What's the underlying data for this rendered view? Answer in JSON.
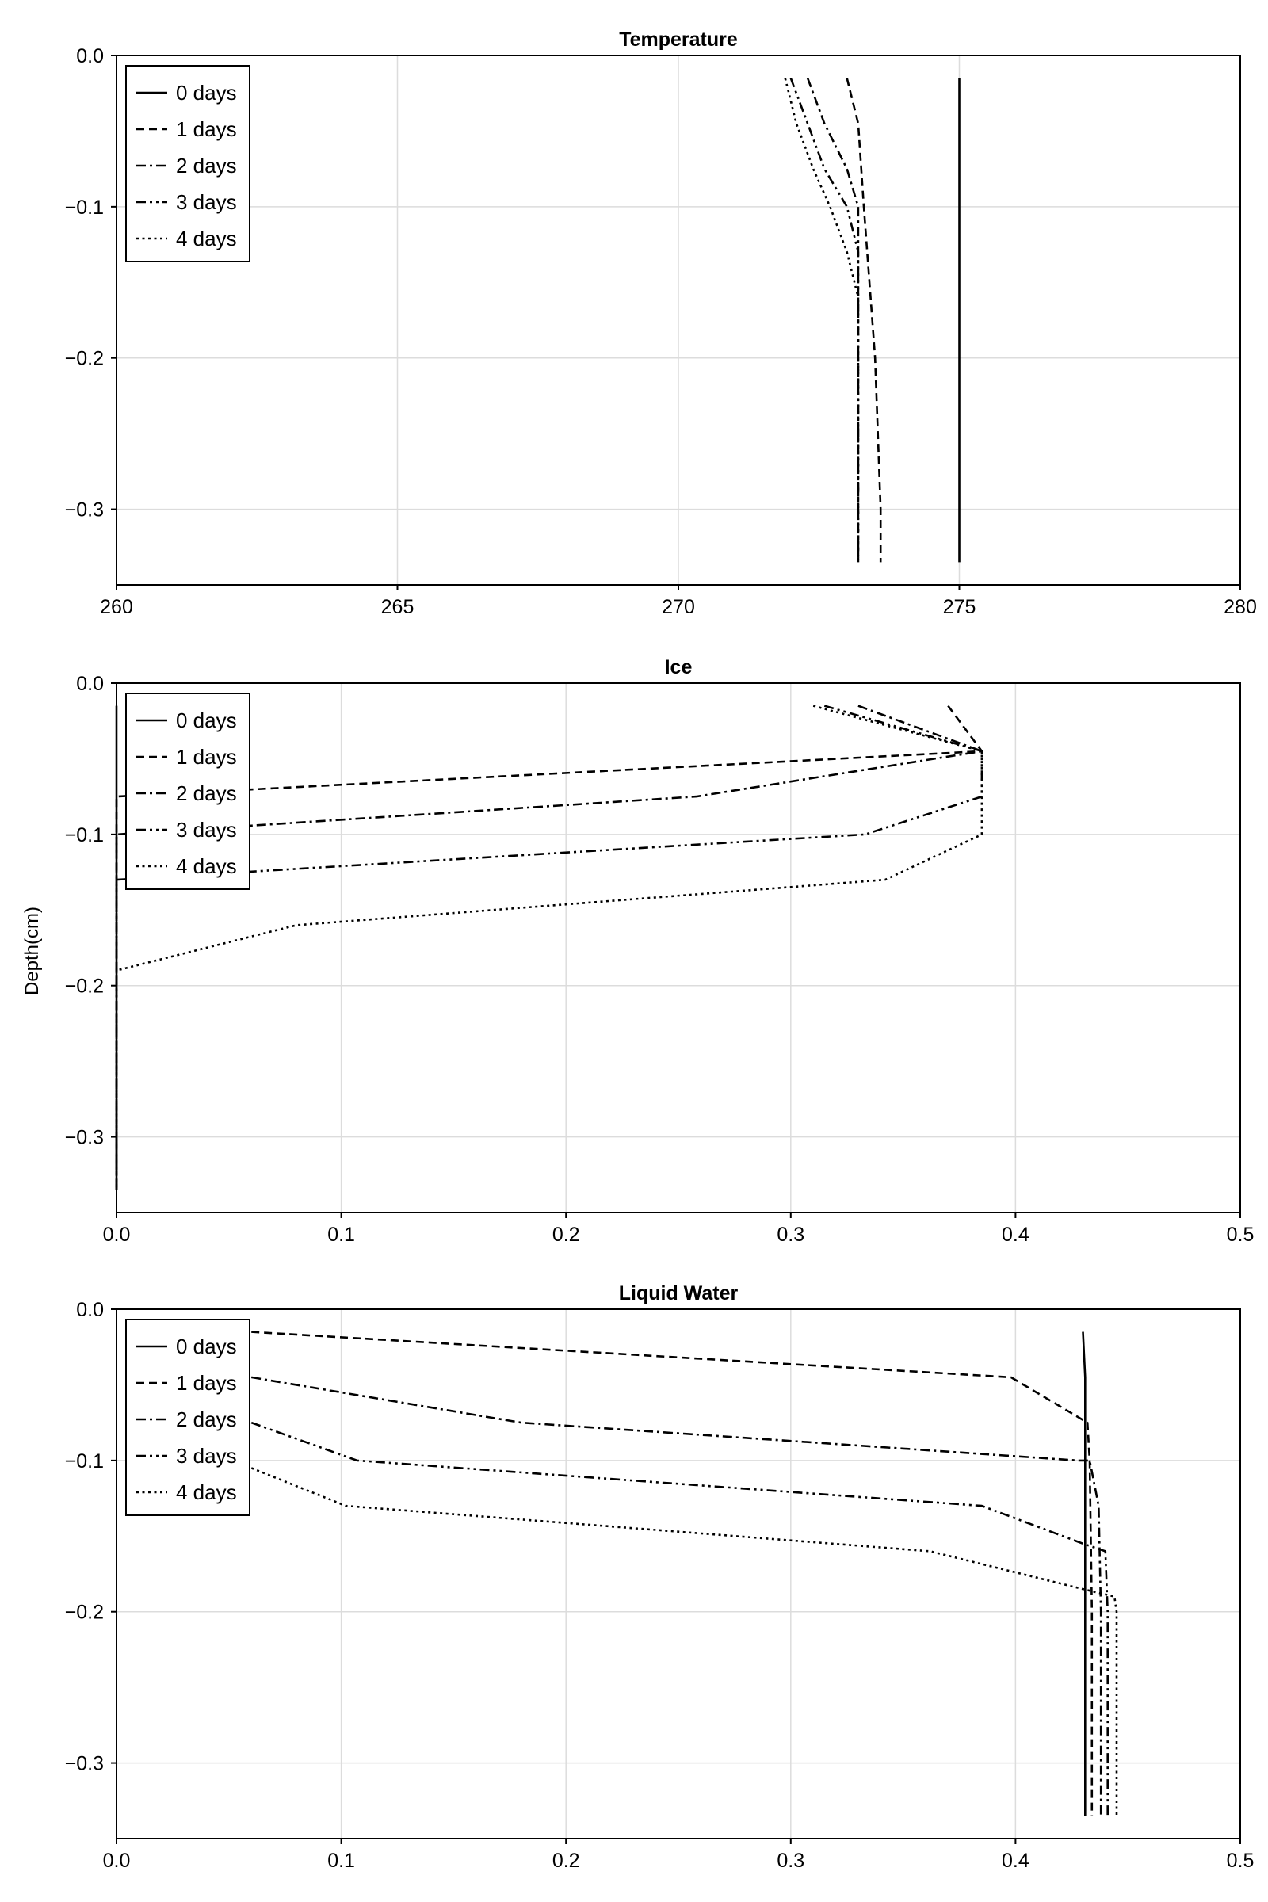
{
  "figure": {
    "ylabel": "Depth(cm)"
  },
  "chart_data": [
    {
      "type": "line",
      "title": "Temperature",
      "xlabel": "",
      "ylabel": "",
      "xlim": [
        260,
        280
      ],
      "ylim": [
        -0.35,
        0.0
      ],
      "xticks": [
        "260",
        "265",
        "270",
        "275",
        "280"
      ],
      "yticks": [
        "0.0",
        "−0.1",
        "−0.2",
        "−0.3"
      ],
      "legend": "top-left",
      "grid": true,
      "series": [
        {
          "name": "0 days",
          "style": "solid",
          "points": [
            [
              275.0,
              -0.015
            ],
            [
              275.0,
              -0.1
            ],
            [
              275.0,
              -0.2
            ],
            [
              275.0,
              -0.3
            ],
            [
              275.0,
              -0.335
            ]
          ]
        },
        {
          "name": "1 days",
          "style": "dashed",
          "points": [
            [
              273.0,
              -0.015
            ],
            [
              273.2,
              -0.045
            ],
            [
              273.3,
              -0.1
            ],
            [
              273.4,
              -0.15
            ],
            [
              273.5,
              -0.2
            ],
            [
              273.55,
              -0.25
            ],
            [
              273.6,
              -0.3
            ],
            [
              273.6,
              -0.335
            ]
          ]
        },
        {
          "name": "2 days",
          "style": "dashdot",
          "points": [
            [
              272.3,
              -0.015
            ],
            [
              272.6,
              -0.045
            ],
            [
              273.0,
              -0.075
            ],
            [
              273.2,
              -0.1
            ],
            [
              273.2,
              -0.15
            ],
            [
              273.2,
              -0.2
            ],
            [
              273.2,
              -0.3
            ],
            [
              273.2,
              -0.335
            ]
          ]
        },
        {
          "name": "3 days",
          "style": "dashdotdot",
          "points": [
            [
              272.0,
              -0.015
            ],
            [
              272.3,
              -0.045
            ],
            [
              272.6,
              -0.075
            ],
            [
              273.0,
              -0.1
            ],
            [
              273.2,
              -0.13
            ],
            [
              273.2,
              -0.2
            ],
            [
              273.2,
              -0.3
            ],
            [
              273.2,
              -0.335
            ]
          ]
        },
        {
          "name": "4 days",
          "style": "dotted",
          "points": [
            [
              271.9,
              -0.015
            ],
            [
              272.1,
              -0.045
            ],
            [
              272.4,
              -0.075
            ],
            [
              272.7,
              -0.1
            ],
            [
              273.0,
              -0.13
            ],
            [
              273.2,
              -0.16
            ],
            [
              273.2,
              -0.2
            ],
            [
              273.2,
              -0.3
            ],
            [
              273.2,
              -0.335
            ]
          ]
        }
      ]
    },
    {
      "type": "line",
      "title": "Ice",
      "xlabel": "",
      "ylabel": "",
      "xlim": [
        0.0,
        0.5
      ],
      "ylim": [
        -0.35,
        0.0
      ],
      "xticks": [
        "0.0",
        "0.1",
        "0.2",
        "0.3",
        "0.4",
        "0.5"
      ],
      "yticks": [
        "0.0",
        "−0.1",
        "−0.2",
        "−0.3"
      ],
      "legend": "top-left",
      "grid": true,
      "series": [
        {
          "name": "0 days",
          "style": "solid",
          "points": [
            [
              0.0,
              -0.015
            ],
            [
              0.0,
              -0.1
            ],
            [
              0.0,
              -0.2
            ],
            [
              0.0,
              -0.3
            ],
            [
              0.0,
              -0.335
            ]
          ]
        },
        {
          "name": "1 days",
          "style": "dashed",
          "points": [
            [
              0.37,
              -0.015
            ],
            [
              0.385,
              -0.045
            ],
            [
              0.0,
              -0.075
            ],
            [
              0.0,
              -0.1
            ],
            [
              0.0,
              -0.2
            ],
            [
              0.0,
              -0.335
            ]
          ]
        },
        {
          "name": "2 days",
          "style": "dashdot",
          "points": [
            [
              0.33,
              -0.015
            ],
            [
              0.385,
              -0.045
            ],
            [
              0.258,
              -0.075
            ],
            [
              0.0,
              -0.1
            ],
            [
              0.0,
              -0.2
            ],
            [
              0.0,
              -0.335
            ]
          ]
        },
        {
          "name": "3 days",
          "style": "dashdotdot",
          "points": [
            [
              0.315,
              -0.015
            ],
            [
              0.385,
              -0.045
            ],
            [
              0.385,
              -0.075
            ],
            [
              0.333,
              -0.1
            ],
            [
              0.0,
              -0.13
            ],
            [
              0.0,
              -0.2
            ],
            [
              0.0,
              -0.335
            ]
          ]
        },
        {
          "name": "4 days",
          "style": "dotted",
          "points": [
            [
              0.31,
              -0.015
            ],
            [
              0.385,
              -0.045
            ],
            [
              0.385,
              -0.075
            ],
            [
              0.385,
              -0.1
            ],
            [
              0.342,
              -0.13
            ],
            [
              0.08,
              -0.16
            ],
            [
              0.0,
              -0.19
            ],
            [
              0.0,
              -0.335
            ]
          ]
        }
      ]
    },
    {
      "type": "line",
      "title": "Liquid Water",
      "xlabel": "",
      "ylabel": "",
      "xlim": [
        0.0,
        0.5
      ],
      "ylim": [
        -0.35,
        0.0
      ],
      "xticks": [
        "0.0",
        "0.1",
        "0.2",
        "0.3",
        "0.4",
        "0.5"
      ],
      "yticks": [
        "0.0",
        "−0.1",
        "−0.2",
        "−0.3"
      ],
      "legend": "top-left",
      "grid": true,
      "series": [
        {
          "name": "0 days",
          "style": "solid",
          "points": [
            [
              0.43,
              -0.015
            ],
            [
              0.431,
              -0.045
            ],
            [
              0.431,
              -0.1
            ],
            [
              0.431,
              -0.2
            ],
            [
              0.431,
              -0.3
            ],
            [
              0.431,
              -0.335
            ]
          ]
        },
        {
          "name": "1 days",
          "style": "dashed",
          "points": [
            [
              0.06,
              -0.015
            ],
            [
              0.398,
              -0.045
            ],
            [
              0.432,
              -0.075
            ],
            [
              0.433,
              -0.1
            ],
            [
              0.434,
              -0.2
            ],
            [
              0.434,
              -0.3
            ],
            [
              0.434,
              -0.335
            ]
          ]
        },
        {
          "name": "2 days",
          "style": "dashdot",
          "points": [
            [
              0.06,
              -0.045
            ],
            [
              0.18,
              -0.075
            ],
            [
              0.428,
              -0.1
            ],
            [
              0.433,
              -0.1
            ],
            [
              0.437,
              -0.13
            ],
            [
              0.438,
              -0.2
            ],
            [
              0.438,
              -0.3
            ],
            [
              0.438,
              -0.335
            ]
          ]
        },
        {
          "name": "3 days",
          "style": "dashdotdot",
          "points": [
            [
              0.06,
              -0.075
            ],
            [
              0.107,
              -0.1
            ],
            [
              0.385,
              -0.13
            ],
            [
              0.43,
              -0.155
            ],
            [
              0.44,
              -0.16
            ],
            [
              0.441,
              -0.2
            ],
            [
              0.441,
              -0.3
            ],
            [
              0.441,
              -0.335
            ]
          ]
        },
        {
          "name": "4 days",
          "style": "dotted",
          "points": [
            [
              0.06,
              -0.105
            ],
            [
              0.102,
              -0.13
            ],
            [
              0.362,
              -0.16
            ],
            [
              0.43,
              -0.185
            ],
            [
              0.444,
              -0.19
            ],
            [
              0.445,
              -0.2
            ],
            [
              0.445,
              -0.3
            ],
            [
              0.445,
              -0.335
            ]
          ]
        }
      ]
    }
  ]
}
